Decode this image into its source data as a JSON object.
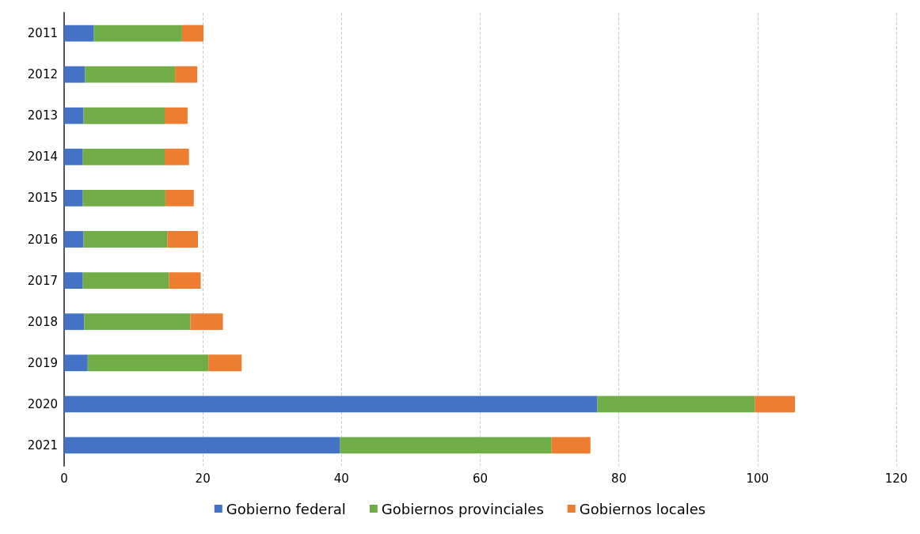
{
  "chart_data": {
    "type": "bar",
    "orientation": "horizontal",
    "stacked": true,
    "categories": [
      "2011",
      "2012",
      "2013",
      "2014",
      "2015",
      "2016",
      "2017",
      "2018",
      "2019",
      "2020",
      "2021"
    ],
    "series": [
      {
        "name": "Gobierno federal",
        "color": "#4472c4",
        "values": [
          4.3,
          3.0,
          2.8,
          2.7,
          2.7,
          2.8,
          2.7,
          2.9,
          3.4,
          76.9,
          39.8
        ]
      },
      {
        "name": "Gobiernos provinciales",
        "color": "#70ad47",
        "values": [
          12.7,
          13.0,
          11.7,
          11.8,
          11.9,
          12.1,
          12.4,
          15.3,
          17.4,
          22.7,
          30.5
        ]
      },
      {
        "name": "Gobiernos locales",
        "color": "#ed7d31",
        "values": [
          3.1,
          3.2,
          3.3,
          3.5,
          4.1,
          4.4,
          4.6,
          4.7,
          4.8,
          5.8,
          5.6
        ]
      }
    ],
    "xlim": [
      0,
      120
    ],
    "xticks": [
      0,
      20,
      40,
      60,
      80,
      100,
      120
    ],
    "grid": "x",
    "legend": "bottom"
  }
}
